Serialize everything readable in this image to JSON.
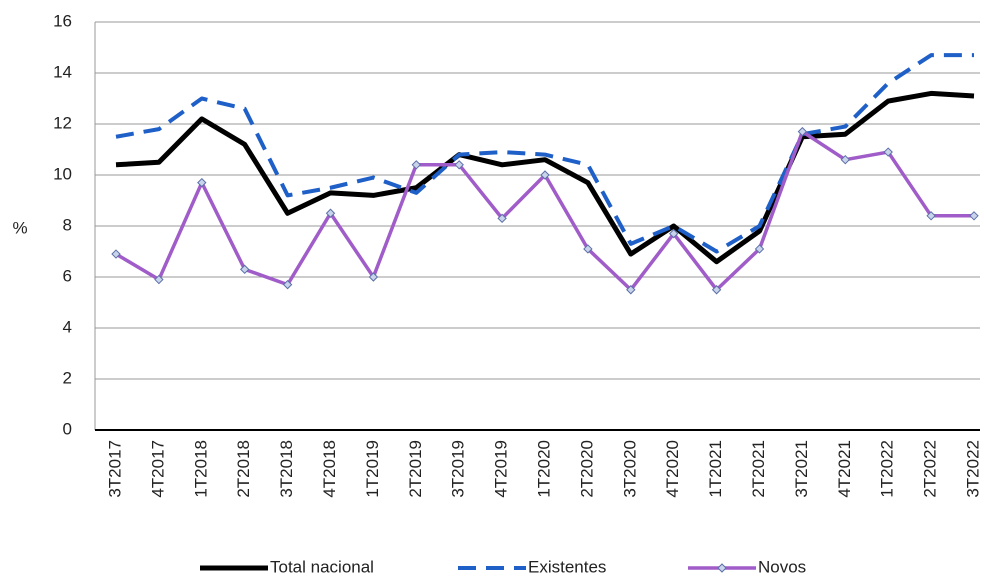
{
  "chart_data": {
    "type": "line",
    "y_label": "%",
    "categories": [
      "3T2017",
      "4T2017",
      "1T2018",
      "2T2018",
      "3T2018",
      "4T2018",
      "1T2019",
      "2T2019",
      "3T2019",
      "4T2019",
      "1T2020",
      "2T2020",
      "3T2020",
      "4T2020",
      "1T2021",
      "2T2021",
      "3T2021",
      "4T2021",
      "1T2022",
      "2T2022",
      "3T2022"
    ],
    "series": [
      {
        "name": "Total nacional",
        "color": "#000000",
        "style": "solid",
        "values": [
          10.4,
          10.5,
          12.2,
          11.2,
          8.5,
          9.3,
          9.2,
          9.5,
          10.8,
          10.4,
          10.6,
          9.7,
          6.9,
          8.0,
          6.6,
          7.8,
          11.5,
          11.6,
          12.9,
          13.2,
          13.1
        ]
      },
      {
        "name": "Existentes",
        "color": "#1f5fc8",
        "style": "dashed",
        "values": [
          11.5,
          11.8,
          13.0,
          12.6,
          9.2,
          9.5,
          9.9,
          9.3,
          10.8,
          10.9,
          10.8,
          10.4,
          7.3,
          8.0,
          7.0,
          8.0,
          11.6,
          11.9,
          13.6,
          14.7,
          14.7
        ]
      },
      {
        "name": "Novos",
        "color": "#a05cc8",
        "style": "markers",
        "values": [
          6.9,
          5.9,
          9.7,
          6.3,
          5.7,
          8.5,
          6.0,
          10.4,
          10.4,
          8.3,
          10.0,
          7.1,
          5.5,
          7.7,
          5.5,
          7.1,
          11.7,
          10.6,
          10.9,
          8.4,
          8.4
        ]
      }
    ],
    "ylim": [
      0,
      16
    ],
    "yticks": [
      0,
      2,
      4,
      6,
      8,
      10,
      12,
      14,
      16
    ],
    "grid": true,
    "legend": "bottom"
  }
}
